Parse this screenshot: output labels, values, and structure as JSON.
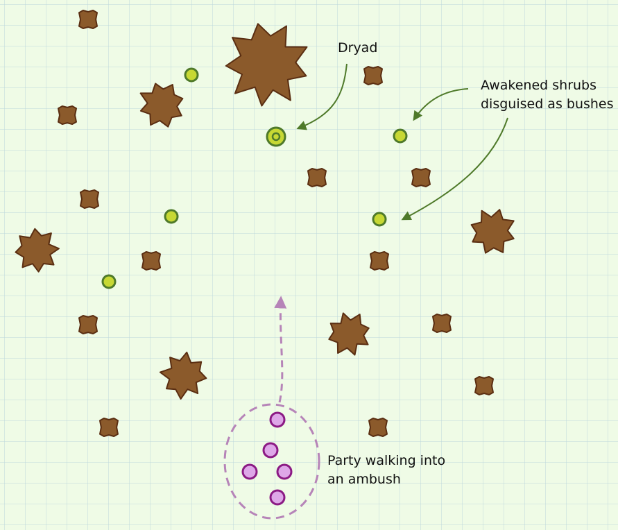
{
  "map": {
    "labels": {
      "dryad": "Dryad",
      "shrubs_line1": "Awakened shrubs",
      "shrubs_line2": "disguised as bushes",
      "party_line1": "Party walking into",
      "party_line2": "an ambush"
    },
    "colors": {
      "background": "#effbe6",
      "grid": "#bcd7dc",
      "tree_fill": "#8b5a2b",
      "tree_stroke": "#5a2e12",
      "shrub_fill": "#c7d834",
      "shrub_stroke": "#4f7a2a",
      "arrow": "#4f7a2a",
      "party_fill": "#dea7e8",
      "party_stroke": "#8b1a84",
      "party_path": "#b684b8"
    },
    "markers": {
      "tree": "brown-spiky-tree",
      "bush": "brown-bush",
      "shrub": "green-circle",
      "dryad": "green-double-circle",
      "party_member": "purple-circle"
    }
  }
}
